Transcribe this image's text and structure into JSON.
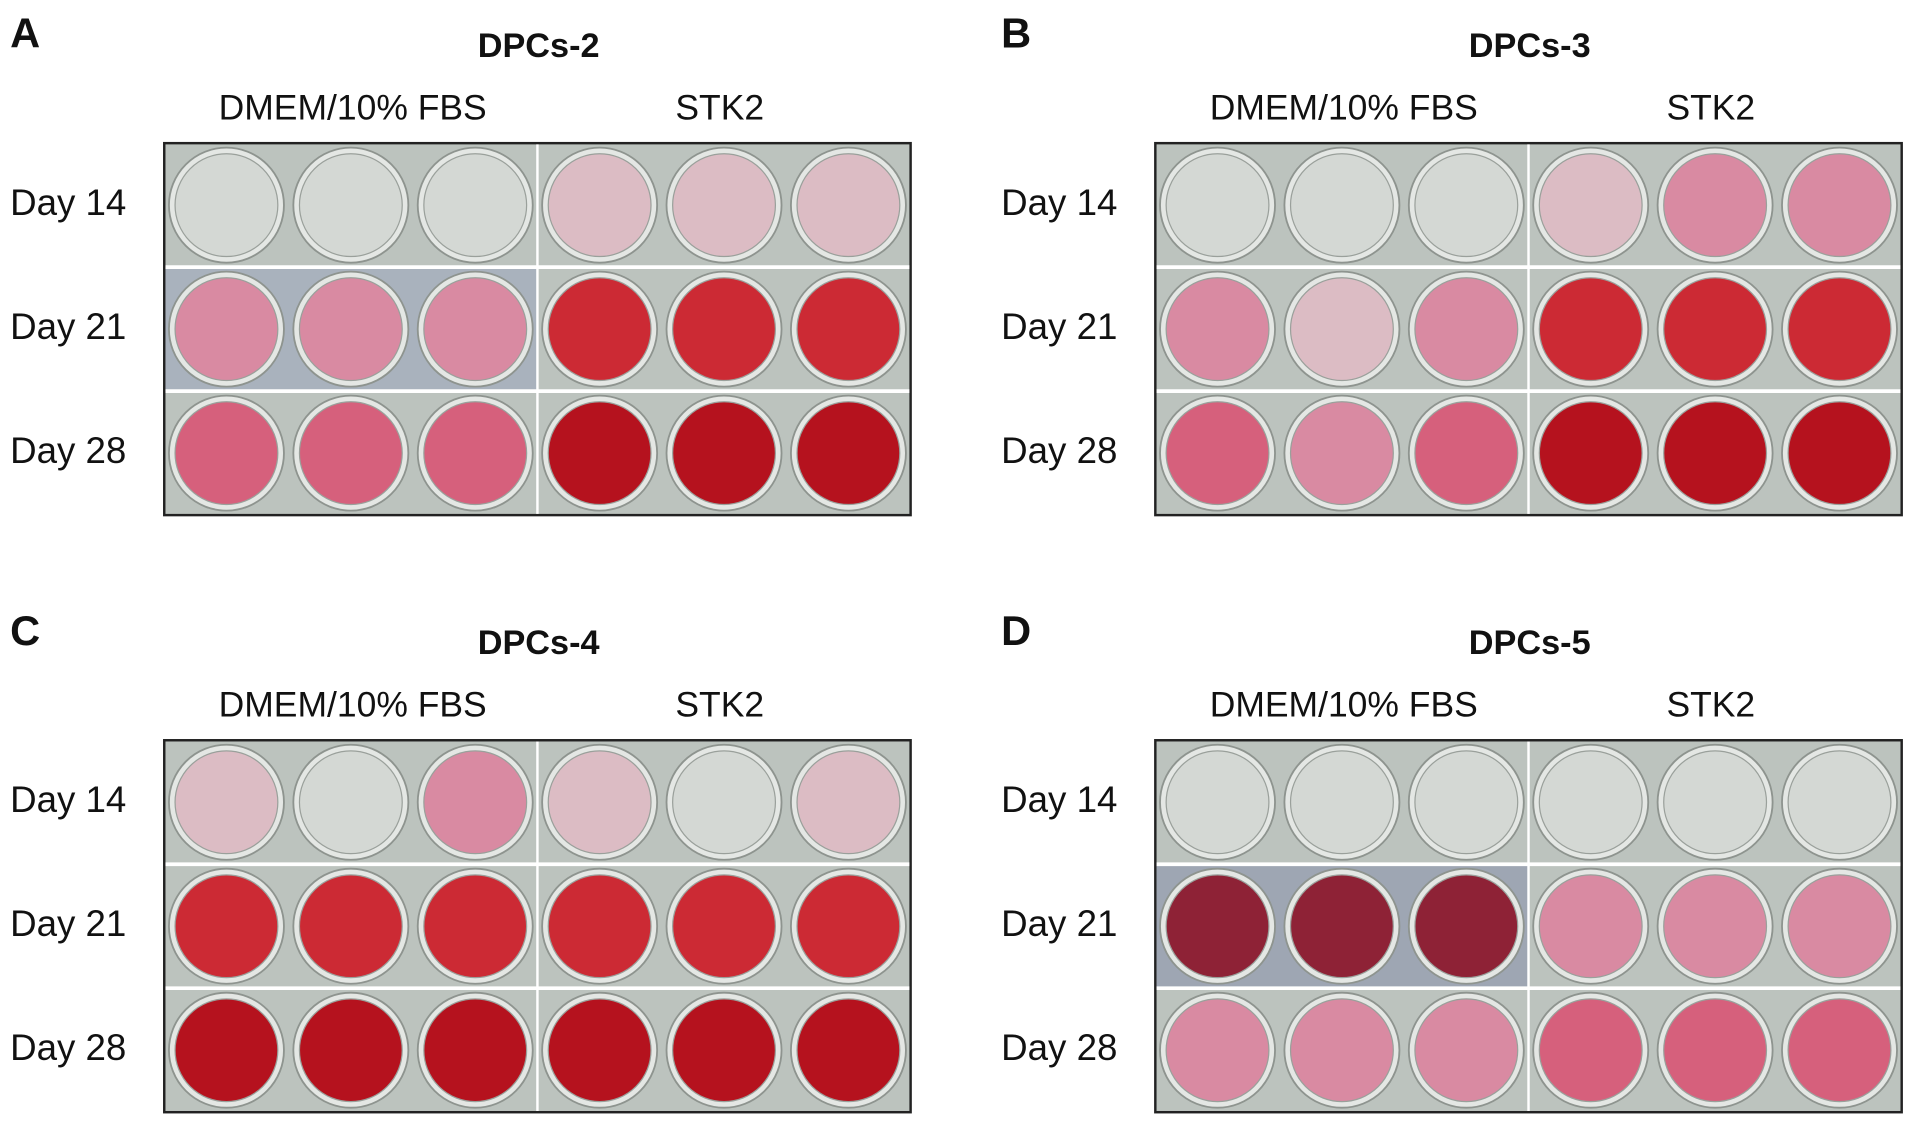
{
  "panels": [
    {
      "letter": "A",
      "title": "DPCs-2",
      "columns": [
        "DMEM/10% FBS",
        "STK2"
      ],
      "rows": [
        "Day 14",
        "Day 21",
        "Day 28"
      ]
    },
    {
      "letter": "B",
      "title": "DPCs-3",
      "columns": [
        "DMEM/10% FBS",
        "STK2"
      ],
      "rows": [
        "Day 14",
        "Day 21",
        "Day 28"
      ]
    },
    {
      "letter": "C",
      "title": "DPCs-4",
      "columns": [
        "DMEM/10% FBS",
        "STK2"
      ],
      "rows": [
        "Day 14",
        "Day 21",
        "Day 28"
      ]
    },
    {
      "letter": "D",
      "title": "DPCs-5",
      "columns": [
        "DMEM/10% FBS",
        "STK2"
      ],
      "rows": [
        "Day 14",
        "Day 21",
        "Day 28"
      ]
    }
  ]
}
